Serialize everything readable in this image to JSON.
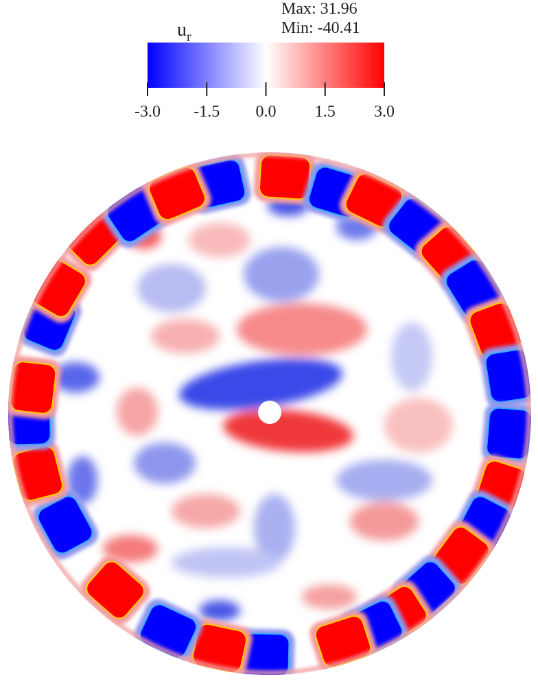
{
  "chart_data": {
    "type": "contour",
    "colorbar_title": "u",
    "colorbar_title_sub": "r",
    "max_label": "Max: 31.96",
    "min_label": "Min: -40.41",
    "clim": [
      -3,
      3
    ],
    "cticks": [
      {
        "value": -3,
        "label": "-3.0"
      },
      {
        "value": -1.5,
        "label": "-1.5"
      },
      {
        "value": 0,
        "label": "0.0"
      },
      {
        "value": 1.5,
        "label": "1.5"
      },
      {
        "value": 3,
        "label": "3.0"
      }
    ],
    "colormap": [
      "#0000ff",
      "#ffffff",
      "#ff0000"
    ]
  }
}
